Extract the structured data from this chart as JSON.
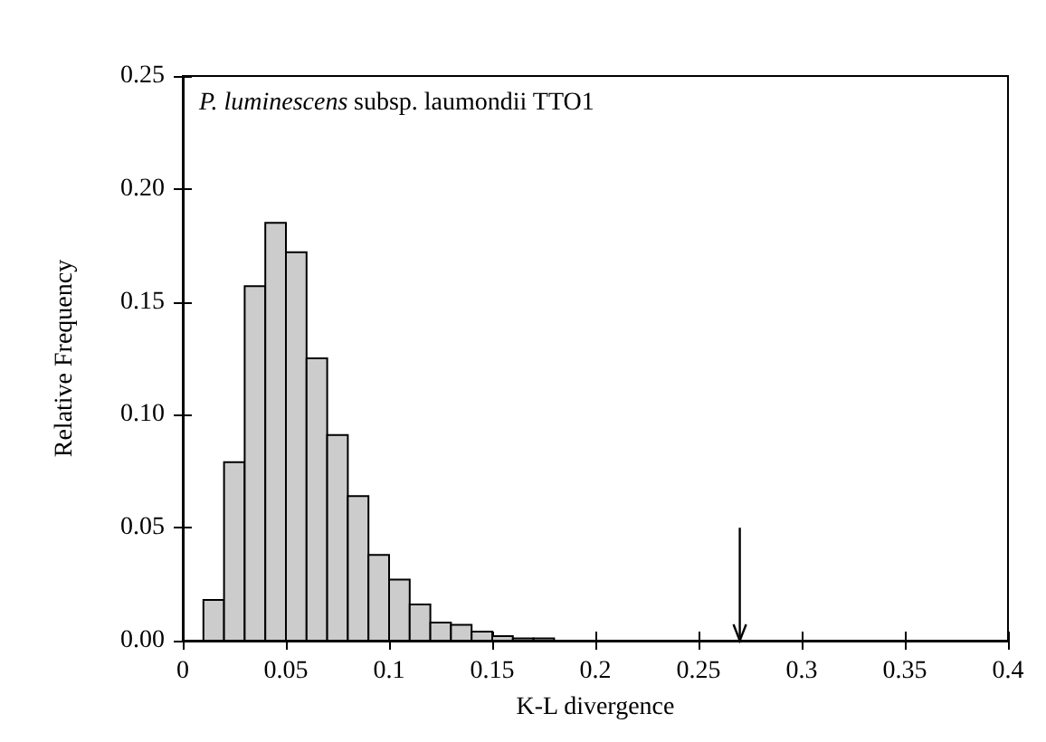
{
  "chart_data": {
    "type": "histogram",
    "xlabel": "K-L divergence",
    "ylabel": "Relative Frequency",
    "annotations": [
      "P. luminescens subsp. laumondii TTO1"
    ],
    "bins": [
      0.01,
      0.02,
      0.03,
      0.04,
      0.05,
      0.06,
      0.07,
      0.08,
      0.09,
      0.1,
      0.11,
      0.12,
      0.13,
      0.14,
      0.15,
      0.16,
      0.17,
      0.18
    ],
    "values": [
      0.018,
      0.079,
      0.157,
      0.185,
      0.172,
      0.125,
      0.091,
      0.064,
      0.038,
      0.027,
      0.016,
      0.008,
      0.007,
      0.004,
      0.002,
      0.001,
      0.001
    ],
    "color": "#cccccc",
    "xlim": [
      0,
      0.4
    ],
    "xticks": [
      0,
      0.05,
      0.1,
      0.15,
      0.2,
      0.25,
      0.3,
      0.35,
      0.4
    ],
    "ylim": [
      0,
      0.25
    ],
    "yticks": [
      {
        "value": 0,
        "label": "0.00"
      },
      {
        "value": 0.05,
        "label": "0.05"
      },
      {
        "value": 0.1,
        "label": "0.10"
      },
      {
        "value": 0.15,
        "label": "0.15"
      },
      {
        "value": 0.2,
        "label": "0.20"
      },
      {
        "value": 0.25,
        "label": "0.25"
      }
    ],
    "ref_lines": [
      {
        "axis": "x",
        "value": 0.27,
        "color": "#000000"
      }
    ],
    "grid": false
  }
}
